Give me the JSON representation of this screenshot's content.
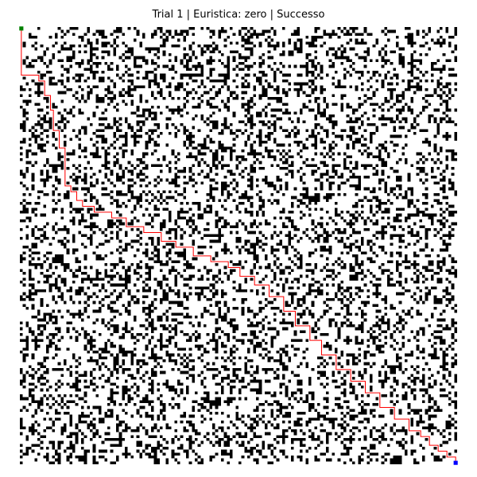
{
  "figure": {
    "title": "Trial 1 | Euristica: zero | Successo"
  },
  "grid": {
    "rows": 150,
    "cols": 150,
    "obstacle_density": 0.3,
    "colors": {
      "free": "#ffffff",
      "obstacle": "#000000",
      "path": "#ff0000",
      "start": "#008000",
      "goal": "#0000ff"
    },
    "start_cell": [
      0,
      0
    ],
    "goal_cell": [
      149,
      149
    ],
    "path_cells": [
      [
        0,
        0
      ],
      [
        16,
        0
      ],
      [
        16,
        6
      ],
      [
        18,
        6
      ],
      [
        18,
        8
      ],
      [
        23,
        8
      ],
      [
        23,
        10
      ],
      [
        28,
        10
      ],
      [
        28,
        11
      ],
      [
        35,
        11
      ],
      [
        35,
        13
      ],
      [
        41,
        13
      ],
      [
        41,
        15
      ],
      [
        54,
        15
      ],
      [
        54,
        17
      ],
      [
        56,
        17
      ],
      [
        56,
        19
      ],
      [
        59,
        19
      ],
      [
        59,
        21
      ],
      [
        61,
        21
      ],
      [
        61,
        25
      ],
      [
        63,
        25
      ],
      [
        63,
        31
      ],
      [
        65,
        31
      ],
      [
        65,
        36
      ],
      [
        68,
        36
      ],
      [
        68,
        42
      ],
      [
        70,
        42
      ],
      [
        70,
        48
      ],
      [
        73,
        48
      ],
      [
        73,
        53
      ],
      [
        75,
        53
      ],
      [
        75,
        59
      ],
      [
        78,
        59
      ],
      [
        78,
        65
      ],
      [
        80,
        65
      ],
      [
        80,
        71
      ],
      [
        82,
        71
      ],
      [
        82,
        75
      ],
      [
        85,
        75
      ],
      [
        85,
        80
      ],
      [
        88,
        80
      ],
      [
        88,
        85
      ],
      [
        92,
        85
      ],
      [
        92,
        90
      ],
      [
        97,
        90
      ],
      [
        97,
        94
      ],
      [
        102,
        94
      ],
      [
        102,
        99
      ],
      [
        107,
        99
      ],
      [
        107,
        103
      ],
      [
        112,
        103
      ],
      [
        112,
        108
      ],
      [
        117,
        108
      ],
      [
        117,
        113
      ],
      [
        121,
        113
      ],
      [
        121,
        118
      ],
      [
        125,
        118
      ],
      [
        125,
        123
      ],
      [
        130,
        123
      ],
      [
        130,
        128
      ],
      [
        134,
        128
      ],
      [
        134,
        133
      ],
      [
        138,
        133
      ],
      [
        138,
        137
      ],
      [
        140,
        137
      ],
      [
        140,
        140
      ],
      [
        143,
        140
      ],
      [
        143,
        143
      ],
      [
        145,
        143
      ],
      [
        145,
        146
      ],
      [
        147,
        146
      ],
      [
        147,
        149
      ],
      [
        149,
        149
      ]
    ]
  }
}
